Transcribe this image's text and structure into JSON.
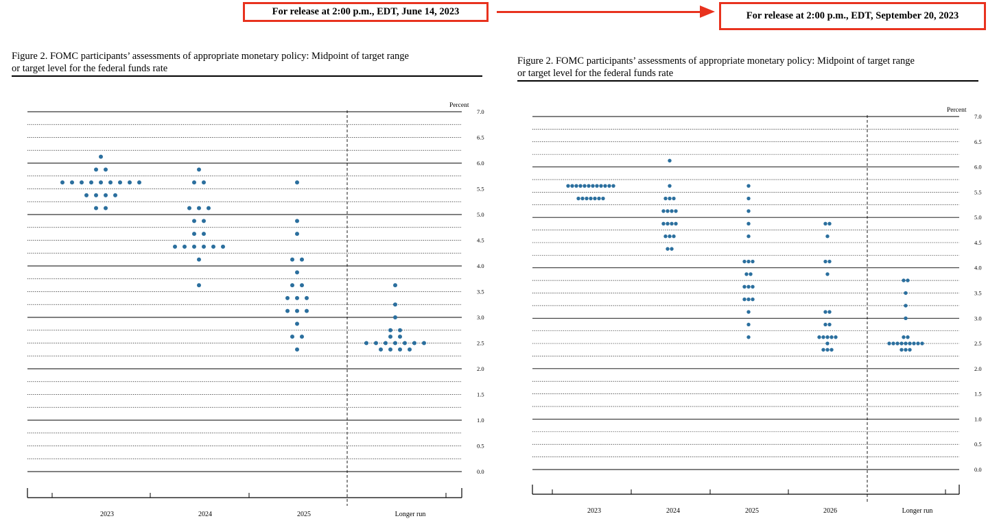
{
  "release": {
    "left_label": "For release at 2:00 p.m., EDT, June 14, 2023",
    "right_label": "For release at 2:00 p.m., EDT, September 20, 2023"
  },
  "colors": {
    "accent": "#e8321e",
    "dot": "#2b6f9e"
  },
  "chart_data": [
    {
      "type": "scatter",
      "title_line1": "Figure 2.  FOMC participants’ assessments of appropriate monetary policy:  Midpoint of target range",
      "title_line2": "or target level for the federal funds rate",
      "ylabel": "Percent",
      "ylim": [
        0,
        7
      ],
      "y_ticks": [
        "0.0",
        "0.5",
        "1.0",
        "1.5",
        "2.0",
        "2.5",
        "3.0",
        "3.5",
        "4.0",
        "4.5",
        "5.0",
        "5.5",
        "6.0",
        "6.5",
        "7.0"
      ],
      "categories": [
        "2023",
        "2024",
        "2025",
        "Longer run"
      ],
      "dots": [
        {
          "category": "2023",
          "counts": [
            [
              6.125,
              1
            ],
            [
              5.875,
              2
            ],
            [
              5.625,
              9
            ],
            [
              5.375,
              4
            ],
            [
              5.125,
              2
            ]
          ]
        },
        {
          "category": "2024",
          "counts": [
            [
              5.875,
              1
            ],
            [
              5.625,
              2
            ],
            [
              5.125,
              3
            ],
            [
              4.875,
              2
            ],
            [
              4.625,
              2
            ],
            [
              4.375,
              6
            ],
            [
              4.125,
              1
            ],
            [
              3.625,
              1
            ]
          ]
        },
        {
          "category": "2025",
          "counts": [
            [
              5.625,
              1
            ],
            [
              4.875,
              1
            ],
            [
              4.625,
              1
            ],
            [
              4.125,
              2
            ],
            [
              3.875,
              1
            ],
            [
              3.625,
              2
            ],
            [
              3.375,
              3
            ],
            [
              3.125,
              3
            ],
            [
              2.875,
              1
            ],
            [
              2.625,
              2
            ],
            [
              2.375,
              1
            ]
          ]
        },
        {
          "category": "Longer run",
          "counts": [
            [
              3.625,
              1
            ],
            [
              3.25,
              1
            ],
            [
              3.0,
              1
            ],
            [
              2.75,
              2
            ],
            [
              2.625,
              2
            ],
            [
              2.5,
              7
            ],
            [
              2.375,
              4
            ]
          ]
        }
      ]
    },
    {
      "type": "scatter",
      "title_line1": "Figure 2.  FOMC participants’ assessments of appropriate monetary policy:  Midpoint of target range",
      "title_line2": "or target level for the federal funds rate",
      "ylabel": "Percent",
      "ylim": [
        0,
        7
      ],
      "y_ticks": [
        "0.0",
        "0.5",
        "1.0",
        "1.5",
        "2.0",
        "2.5",
        "3.0",
        "3.5",
        "4.0",
        "4.5",
        "5.0",
        "5.5",
        "6.0",
        "6.5",
        "7.0"
      ],
      "categories": [
        "2023",
        "2024",
        "2025",
        "2026",
        "Longer run"
      ],
      "dots": [
        {
          "category": "2023",
          "counts": [
            [
              5.625,
              12
            ],
            [
              5.375,
              7
            ]
          ]
        },
        {
          "category": "2024",
          "counts": [
            [
              6.125,
              1
            ],
            [
              5.625,
              1
            ],
            [
              5.375,
              3
            ],
            [
              5.125,
              4
            ],
            [
              4.875,
              4
            ],
            [
              4.625,
              3
            ],
            [
              4.375,
              2
            ]
          ]
        },
        {
          "category": "2025",
          "counts": [
            [
              5.625,
              1
            ],
            [
              5.375,
              1
            ],
            [
              5.125,
              1
            ],
            [
              4.875,
              1
            ],
            [
              4.625,
              1
            ],
            [
              4.125,
              3
            ],
            [
              3.875,
              2
            ],
            [
              3.625,
              3
            ],
            [
              3.375,
              3
            ],
            [
              3.125,
              1
            ],
            [
              2.875,
              1
            ],
            [
              2.625,
              1
            ]
          ]
        },
        {
          "category": "2026",
          "counts": [
            [
              4.875,
              2
            ],
            [
              4.625,
              1
            ],
            [
              4.125,
              2
            ],
            [
              3.875,
              1
            ],
            [
              3.125,
              2
            ],
            [
              2.875,
              2
            ],
            [
              2.625,
              5
            ],
            [
              2.5,
              1
            ],
            [
              2.375,
              3
            ]
          ]
        },
        {
          "category": "Longer run",
          "counts": [
            [
              3.75,
              2
            ],
            [
              3.5,
              1
            ],
            [
              3.25,
              1
            ],
            [
              3.0,
              1
            ],
            [
              2.625,
              2
            ],
            [
              2.5,
              9
            ],
            [
              2.375,
              3
            ]
          ]
        }
      ]
    }
  ]
}
